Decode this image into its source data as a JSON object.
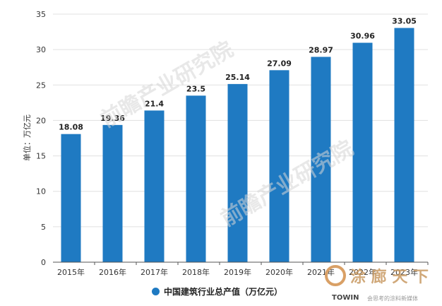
{
  "chart_data": {
    "type": "bar",
    "categories": [
      "2015年",
      "2016年",
      "2017年",
      "2018年",
      "2019年",
      "2020年",
      "2021年",
      "2022年",
      "2023年"
    ],
    "values": [
      18.08,
      19.36,
      21.4,
      23.5,
      25.14,
      27.09,
      28.97,
      30.96,
      33.05
    ],
    "value_labels": [
      "18.08",
      "19.36",
      "21.4",
      "23.5",
      "25.14",
      "27.09",
      "28.97",
      "30.96",
      "33.05"
    ],
    "ylabel": "单位：万亿元",
    "ylim": [
      0,
      35
    ],
    "yticks": [
      0,
      5,
      10,
      15,
      20,
      25,
      30,
      35
    ],
    "grid": true,
    "legend": {
      "position": "bottom",
      "entries": [
        "中国建筑行业总产值（万亿元）"
      ]
    },
    "colors": {
      "bar": "#1f7ac2",
      "grid": "#e0e0e0",
      "axis": "#555555"
    }
  },
  "watermarks": {
    "main_text": "前瞻产业研究院",
    "brand": "涂 廊 天 下",
    "brand_en": "TOWIN",
    "brand_small": "会思考的涂料新媒体"
  }
}
